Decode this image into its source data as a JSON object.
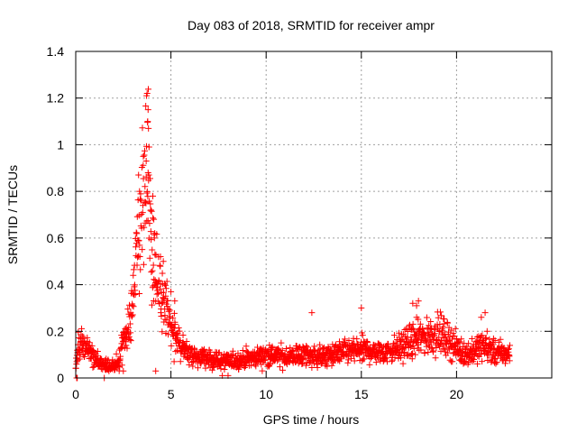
{
  "chart_data": {
    "type": "scatter",
    "title": "Day 083 of 2018, SRMTID for receiver ampr",
    "xlabel": "GPS time / hours",
    "ylabel": "SRMTID / TECUs",
    "xlim": [
      0,
      25
    ],
    "ylim": [
      0,
      1.4
    ],
    "xticks": [
      0,
      5,
      10,
      15,
      20
    ],
    "xtick_labels": [
      "0",
      "5",
      "10",
      "15",
      "20"
    ],
    "yticks": [
      0,
      0.2,
      0.4,
      0.6,
      0.8,
      1,
      1.2,
      1.4
    ],
    "ytick_labels": [
      "0",
      "0.2",
      "0.4",
      "0.6",
      "0.8",
      "1",
      "1.2",
      "1.4"
    ],
    "grid": true,
    "marker": "+",
    "series": [
      {
        "name": "SRMTID",
        "color": "#ff0000",
        "profile_x": [
          0.0,
          0.1,
          0.3,
          0.6,
          1.0,
          1.4,
          1.8,
          2.2,
          2.5,
          2.8,
          3.0,
          3.2,
          3.4,
          3.6,
          3.8,
          4.0,
          4.2,
          4.5,
          4.8,
          5.0,
          5.2,
          5.5,
          6.0,
          7.0,
          8.0,
          9.0,
          10.0,
          11.0,
          12.0,
          13.0,
          14.0,
          15.0,
          16.0,
          17.0,
          17.5,
          18.0,
          18.5,
          19.0,
          19.5,
          20.0,
          20.5,
          21.0,
          21.5,
          22.0,
          22.8
        ],
        "profile_y": [
          0.04,
          0.12,
          0.15,
          0.12,
          0.08,
          0.06,
          0.05,
          0.06,
          0.15,
          0.22,
          0.32,
          0.55,
          0.62,
          0.72,
          0.82,
          0.55,
          0.42,
          0.35,
          0.28,
          0.22,
          0.18,
          0.14,
          0.1,
          0.08,
          0.07,
          0.08,
          0.1,
          0.09,
          0.1,
          0.09,
          0.11,
          0.12,
          0.11,
          0.13,
          0.15,
          0.17,
          0.18,
          0.19,
          0.17,
          0.13,
          0.1,
          0.12,
          0.14,
          0.11,
          0.1
        ],
        "outliers": [
          {
            "x": 0.05,
            "y": 0.0
          },
          {
            "x": 0.08,
            "y": 0.0
          },
          {
            "x": 1.5,
            "y": 0.0
          },
          {
            "x": 3.75,
            "y": 1.22
          },
          {
            "x": 3.72,
            "y": 1.21
          },
          {
            "x": 3.8,
            "y": 1.15
          },
          {
            "x": 3.78,
            "y": 1.1
          },
          {
            "x": 3.82,
            "y": 1.07
          },
          {
            "x": 3.85,
            "y": 0.99
          },
          {
            "x": 3.7,
            "y": 0.93
          },
          {
            "x": 3.8,
            "y": 0.88
          },
          {
            "x": 3.55,
            "y": 0.95
          },
          {
            "x": 3.3,
            "y": 0.87
          },
          {
            "x": 3.35,
            "y": 0.8
          },
          {
            "x": 4.05,
            "y": 0.78
          },
          {
            "x": 4.1,
            "y": 0.68
          },
          {
            "x": 4.15,
            "y": 0.62
          },
          {
            "x": 3.95,
            "y": 0.72
          },
          {
            "x": 4.45,
            "y": 0.52
          },
          {
            "x": 4.6,
            "y": 0.5
          },
          {
            "x": 5.0,
            "y": 0.37
          },
          {
            "x": 5.2,
            "y": 0.33
          },
          {
            "x": 4.2,
            "y": 0.03
          },
          {
            "x": 12.4,
            "y": 0.28
          },
          {
            "x": 15.0,
            "y": 0.3
          },
          {
            "x": 17.7,
            "y": 0.32
          },
          {
            "x": 18.0,
            "y": 0.33
          },
          {
            "x": 17.9,
            "y": 0.31
          },
          {
            "x": 21.3,
            "y": 0.26
          },
          {
            "x": 21.5,
            "y": 0.28
          },
          {
            "x": 7.7,
            "y": 0.01
          },
          {
            "x": 8.0,
            "y": 0.01
          },
          {
            "x": 2.5,
            "y": 0.03
          }
        ]
      }
    ]
  }
}
